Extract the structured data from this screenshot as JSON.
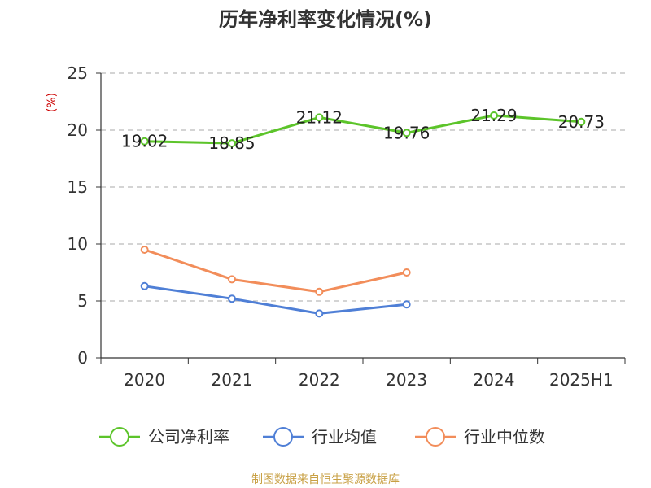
{
  "chart_data": {
    "type": "line",
    "title": "历年净利率变化情况(%)",
    "ylabel": "(%)",
    "xlabel": "",
    "categories": [
      "2020",
      "2021",
      "2022",
      "2023",
      "2024",
      "2025H1"
    ],
    "ylim": [
      0,
      25
    ],
    "yticks": [
      0,
      5,
      10,
      15,
      20,
      25
    ],
    "grid": true,
    "legend_position": "bottom",
    "series": [
      {
        "name": "公司净利率",
        "color": "#5cc42a",
        "values": [
          19.02,
          18.85,
          21.12,
          19.76,
          21.29,
          20.73
        ],
        "labels": [
          "19.02",
          "18.85",
          "21.12",
          "19.76",
          "21.29",
          "20.73"
        ]
      },
      {
        "name": "行业均值",
        "color": "#4f7fd6",
        "values": [
          6.3,
          5.2,
          3.9,
          4.7,
          null,
          null
        ]
      },
      {
        "name": "行业中位数",
        "color": "#f28d5a",
        "values": [
          9.5,
          6.9,
          5.8,
          7.5,
          null,
          null
        ]
      }
    ],
    "source": "制图数据来自恒生聚源数据库",
    "colors": {
      "ylabel": "#cc0000",
      "source": "#c8a044",
      "axis": "#333333",
      "grid": "#bbbbbb"
    }
  }
}
